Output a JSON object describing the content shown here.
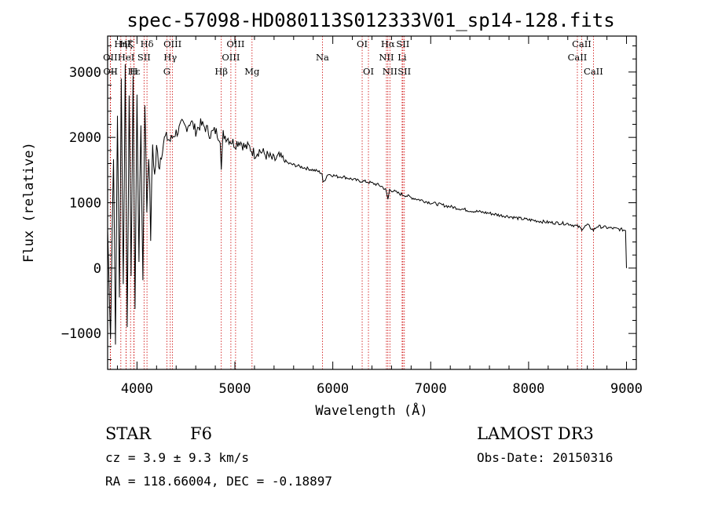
{
  "chart_data": {
    "type": "line",
    "title": "spec-57098-HD080113S012333V01_sp14-128.fits",
    "xlabel": "Wavelength (Å)",
    "ylabel": "Flux (relative)",
    "xlim": [
      3700,
      9100
    ],
    "ylim": [
      -1550,
      3550
    ],
    "xticks": [
      4000,
      5000,
      6000,
      7000,
      8000,
      9000
    ],
    "yticks": [
      -1000,
      0,
      1000,
      2000,
      3000
    ],
    "series": [
      {
        "name": "spectrum",
        "x": [
          3700,
          3730,
          3760,
          3780,
          3800,
          3820,
          3840,
          3860,
          3880,
          3900,
          3920,
          3940,
          3960,
          3980,
          4000,
          4020,
          4040,
          4060,
          4080,
          4100,
          4120,
          4140,
          4160,
          4180,
          4200,
          4230,
          4260,
          4300,
          4340,
          4380,
          4420,
          4460,
          4500,
          4550,
          4600,
          4650,
          4700,
          4750,
          4800,
          4850,
          4861,
          4880,
          4920,
          4960,
          5000,
          5050,
          5100,
          5150,
          5200,
          5250,
          5300,
          5350,
          5400,
          5450,
          5500,
          5550,
          5600,
          5650,
          5700,
          5750,
          5800,
          5850,
          5890,
          5900,
          5950,
          6000,
          6050,
          6100,
          6150,
          6200,
          6250,
          6300,
          6350,
          6400,
          6450,
          6500,
          6540,
          6563,
          6580,
          6620,
          6660,
          6700,
          6750,
          6800,
          6900,
          7000,
          7100,
          7200,
          7300,
          7400,
          7500,
          7600,
          7700,
          7800,
          7900,
          8000,
          8100,
          8200,
          8300,
          8400,
          8498,
          8542,
          8600,
          8662,
          8700,
          8800,
          8900,
          8990,
          9000
        ],
        "y": [
          600,
          -1000,
          1800,
          -1200,
          2400,
          -500,
          2900,
          -300,
          3100,
          -800,
          2500,
          0,
          2800,
          -600,
          2600,
          200,
          2200,
          -200,
          2600,
          900,
          1800,
          500,
          1900,
          1400,
          1800,
          1600,
          1900,
          2000,
          1950,
          2050,
          2100,
          2200,
          2150,
          2250,
          2100,
          2200,
          2150,
          2050,
          2100,
          2000,
          1500,
          2050,
          2000,
          1950,
          1900,
          1950,
          1850,
          1850,
          1750,
          1800,
          1750,
          1700,
          1650,
          1700,
          1650,
          1600,
          1580,
          1560,
          1540,
          1520,
          1500,
          1480,
          1450,
          1300,
          1440,
          1420,
          1400,
          1400,
          1380,
          1360,
          1340,
          1330,
          1320,
          1300,
          1280,
          1250,
          1200,
          1050,
          1200,
          1180,
          1150,
          1130,
          1110,
          1080,
          1040,
          1000,
          970,
          940,
          910,
          880,
          860,
          840,
          810,
          790,
          760,
          740,
          720,
          700,
          690,
          680,
          640,
          600,
          660,
          580,
          640,
          620,
          600,
          580,
          0
        ]
      }
    ],
    "spectral_lines": [
      {
        "name": "Hη",
        "wavelength": 3835,
        "row": 1
      },
      {
        "name": "OII",
        "wavelength": 3727,
        "row": 2
      },
      {
        "name": "OII",
        "wavelength": 3729,
        "row": 3
      },
      {
        "name": "Hζ",
        "wavelength": 3889,
        "row": 1
      },
      {
        "name": "K",
        "wavelength": 3934,
        "row": 1
      },
      {
        "name": "HeI",
        "wavelength": 3889,
        "row": 2
      },
      {
        "name": "Hε",
        "wavelength": 3970,
        "row": 3
      },
      {
        "name": "H",
        "wavelength": 3968,
        "row": 3
      },
      {
        "name": "SII",
        "wavelength": 4072,
        "row": 2
      },
      {
        "name": "Hδ",
        "wavelength": 4102,
        "row": 1
      },
      {
        "name": "OIII",
        "wavelength": 4363,
        "row": 1
      },
      {
        "name": "Hγ",
        "wavelength": 4340,
        "row": 2
      },
      {
        "name": "G",
        "wavelength": 4305,
        "row": 3
      },
      {
        "name": "Hβ",
        "wavelength": 4861,
        "row": 3
      },
      {
        "name": "OIII",
        "wavelength": 5007,
        "row": 1
      },
      {
        "name": "OIII",
        "wavelength": 4959,
        "row": 2
      },
      {
        "name": "Mg",
        "wavelength": 5175,
        "row": 3
      },
      {
        "name": "Na",
        "wavelength": 5894,
        "row": 2
      },
      {
        "name": "OI",
        "wavelength": 6300,
        "row": 1
      },
      {
        "name": "OI",
        "wavelength": 6364,
        "row": 3
      },
      {
        "name": "Hα",
        "wavelength": 6563,
        "row": 1
      },
      {
        "name": "NII",
        "wavelength": 6548,
        "row": 2
      },
      {
        "name": "NII",
        "wavelength": 6583,
        "row": 3
      },
      {
        "name": "SII",
        "wavelength": 6716,
        "row": 1
      },
      {
        "name": "Li",
        "wavelength": 6708,
        "row": 2
      },
      {
        "name": "SII",
        "wavelength": 6731,
        "row": 3
      },
      {
        "name": "CaII",
        "wavelength": 8542,
        "row": 1
      },
      {
        "name": "CaII",
        "wavelength": 8498,
        "row": 2
      },
      {
        "name": "CaII",
        "wavelength": 8662,
        "row": 3
      }
    ]
  },
  "info": {
    "object_class": "STAR",
    "subclass": "F6",
    "survey": "LAMOST DR3",
    "cz": "cz = 3.9 ± 9.3 km/s",
    "obs_date": "Obs-Date: 20150316",
    "coords": "RA = 118.66004, DEC =  -0.18897"
  },
  "colors": {
    "spectrum": "#000000",
    "line_marker": "#cc0000",
    "axes": "#000000",
    "background": "#ffffff"
  }
}
